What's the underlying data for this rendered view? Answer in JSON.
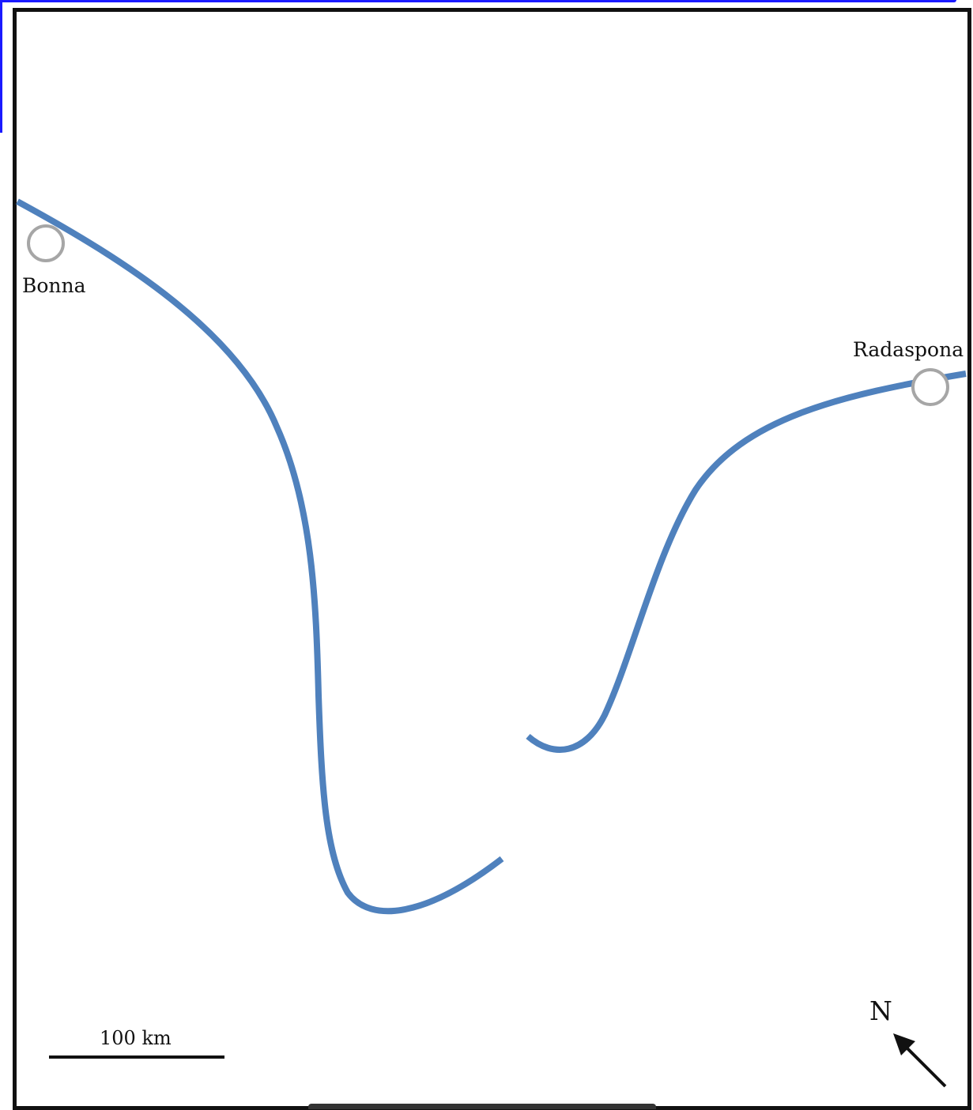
{
  "map": {
    "cities": [
      {
        "name": "Bonna"
      },
      {
        "name": "Radaspona"
      }
    ],
    "scale_bar": {
      "label": "100 km"
    },
    "north_arrow": {
      "label": "N",
      "direction": "north-west"
    },
    "colors": {
      "river": "#4f81bd",
      "frame": "#111111",
      "city_marker_stroke": "#a6a6a6",
      "city_marker_fill": "#ffffff"
    }
  }
}
